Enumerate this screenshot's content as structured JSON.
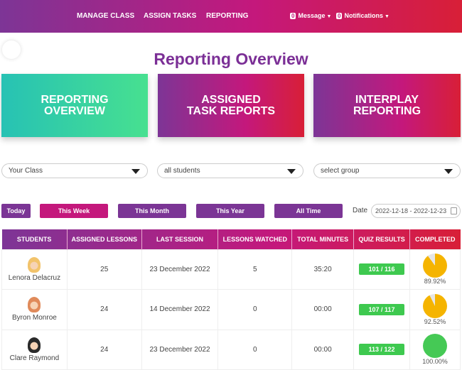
{
  "nav": {
    "items": [
      "MANAGE CLASS",
      "ASSIGN TASKS",
      "REPORTING"
    ],
    "message_count": "0",
    "message_label": "Message",
    "notification_count": "0",
    "notification_label": "Notifications"
  },
  "page_title": "Reporting Overview",
  "cards": [
    {
      "line1": "REPORTING",
      "line2": "OVERVIEW"
    },
    {
      "line1": "ASSIGNED",
      "line2": "TASK REPORTS"
    },
    {
      "line1": "INTERPLAY",
      "line2": "REPORTING"
    }
  ],
  "filters": {
    "class": "Your Class",
    "students": "all students",
    "group": "select group"
  },
  "periods": {
    "today": "Today",
    "week": "This Week",
    "month": "This Month",
    "year": "This Year",
    "all": "All Time",
    "active": "This Week"
  },
  "date": {
    "label": "Date",
    "value": "2022-12-18 - 2022-12-23"
  },
  "table": {
    "headers": [
      "STUDENTS",
      "ASSIGNED LESSONS",
      "LAST SESSION",
      "LESSONS WATCHED",
      "TOTAL MINUTES",
      "QUIZ RESULTS",
      "COMPLETED"
    ],
    "rows": [
      {
        "name": "Lenora Delacruz",
        "assigned": "25",
        "last": "23 December 2022",
        "watched": "5",
        "minutes": "35:20",
        "quiz": "101 / 116",
        "completed": "89.92%",
        "completed_value": 89.92,
        "color": "#f5b400"
      },
      {
        "name": "Byron Monroe",
        "assigned": "24",
        "last": "14 December 2022",
        "watched": "0",
        "minutes": "00:00",
        "quiz": "107 / 117",
        "completed": "92.52%",
        "completed_value": 92.52,
        "color": "#f5b400"
      },
      {
        "name": "Clare Raymond",
        "assigned": "24",
        "last": "23 December 2022",
        "watched": "0",
        "minutes": "00:00",
        "quiz": "113 / 122",
        "completed": "100.00%",
        "completed_value": 100,
        "color": "#45c955"
      }
    ]
  }
}
